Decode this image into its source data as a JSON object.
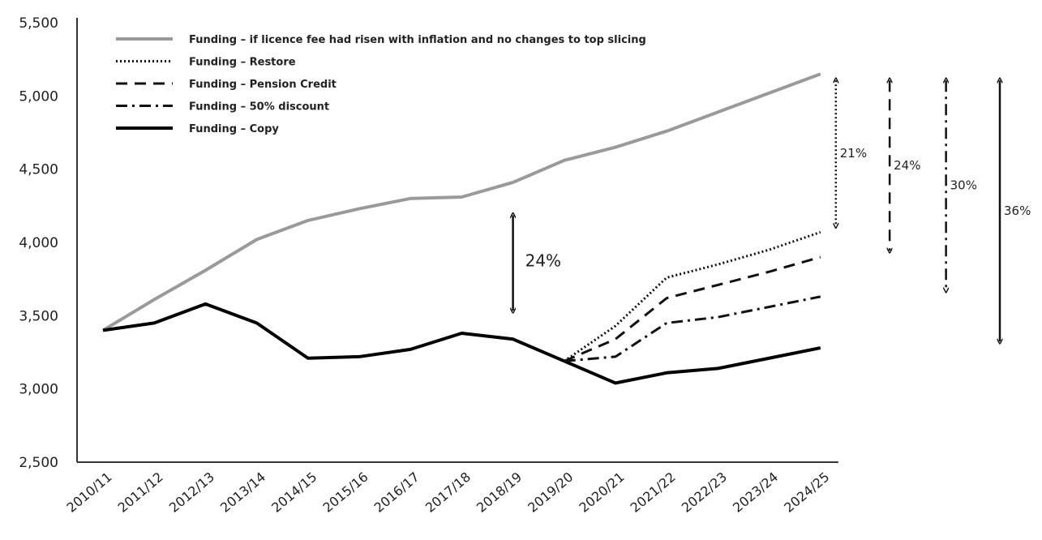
{
  "chart_data": {
    "type": "line",
    "categories": [
      "2010/11",
      "2011/12",
      "2012/13",
      "2013/14",
      "2014/15",
      "2015/16",
      "2016/17",
      "2017/18",
      "2018/19",
      "2019/20",
      "2020/21",
      "2021/22",
      "2022/23",
      "2023/24",
      "2024/25"
    ],
    "ylim": [
      2500,
      5500
    ],
    "yticks": [
      2500,
      3000,
      3500,
      4000,
      4500,
      5000,
      5500
    ],
    "ytick_labels": [
      "2,500",
      "3,000",
      "3,500",
      "4,000",
      "4,500",
      "5,000",
      "5,500"
    ],
    "grid": false,
    "legend_position": "top-left",
    "series": [
      {
        "name": "Funding – if licence fee had risen with inflation and no changes to top slicing",
        "style": "solid",
        "color": "#9a9a9a",
        "values": [
          3400,
          3610,
          3810,
          4020,
          4150,
          4230,
          4300,
          4310,
          4410,
          4560,
          4650,
          4760,
          4890,
          5020,
          5150
        ]
      },
      {
        "name": "Funding – Restore",
        "style": "dotted",
        "color": "#111111",
        "values": [
          null,
          null,
          null,
          null,
          null,
          null,
          null,
          null,
          null,
          3190,
          3430,
          3760,
          3850,
          3950,
          4070
        ]
      },
      {
        "name": "Funding – Pension Credit",
        "style": "dashed",
        "color": "#111111",
        "values": [
          null,
          null,
          null,
          null,
          null,
          null,
          null,
          null,
          null,
          3190,
          3340,
          3620,
          3710,
          3800,
          3900
        ]
      },
      {
        "name": "Funding – 50% discount",
        "style": "dashdot",
        "color": "#111111",
        "values": [
          null,
          null,
          null,
          null,
          null,
          null,
          null,
          null,
          null,
          3190,
          3220,
          3450,
          3490,
          3560,
          3630
        ]
      },
      {
        "name": "Funding – Copy",
        "style": "solid",
        "color": "#000000",
        "values": [
          3400,
          3450,
          3580,
          3450,
          3210,
          3220,
          3270,
          3380,
          3340,
          3190,
          3040,
          3110,
          3140,
          3210,
          3280
        ]
      }
    ],
    "annotations": [
      {
        "label": "24%",
        "index": 8,
        "from": 4230,
        "to": 3490,
        "style": "solid",
        "size": "large"
      },
      {
        "label": "21%",
        "index": 14.3,
        "from": 5150,
        "to": 4070,
        "style": "dotted",
        "size": "small"
      },
      {
        "label": "24%",
        "index": 15.35,
        "from": 5150,
        "to": 3900,
        "style": "dashed",
        "size": "small"
      },
      {
        "label": "30%",
        "index": 16.45,
        "from": 5150,
        "to": 3630,
        "style": "dashdot",
        "size": "small"
      },
      {
        "label": "36%",
        "index": 17.5,
        "from": 5150,
        "to": 3280,
        "style": "solid",
        "size": "small"
      }
    ]
  }
}
